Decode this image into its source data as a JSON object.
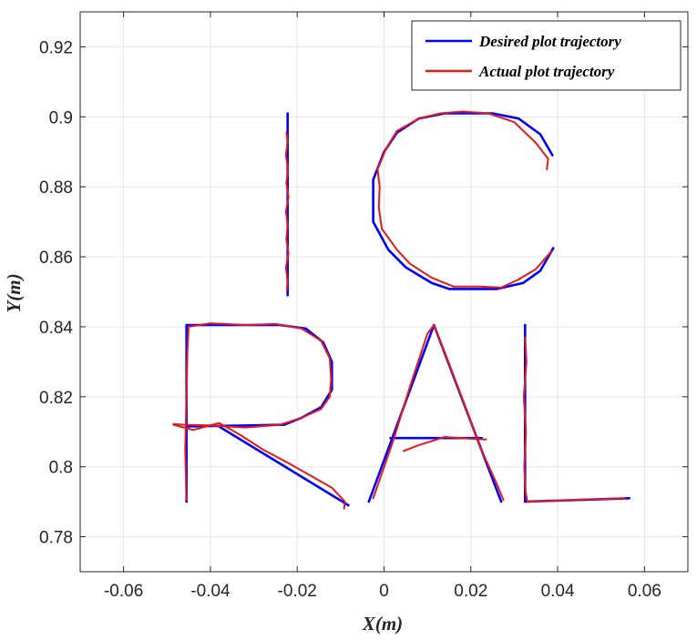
{
  "chart_data": {
    "type": "line",
    "title": "",
    "xlabel": "X(m)",
    "ylabel": "Y(m)",
    "xlim": [
      -0.07,
      0.07
    ],
    "ylim": [
      0.77,
      0.93
    ],
    "xticks": [
      -0.06,
      -0.04,
      -0.02,
      0,
      0.02,
      0.04,
      0.06
    ],
    "xtick_labels": [
      "-0.06",
      "-0.04",
      "-0.02",
      "0",
      "0.02",
      "0.04",
      "0.06"
    ],
    "yticks": [
      0.78,
      0.8,
      0.82,
      0.84,
      0.86,
      0.88,
      0.9,
      0.92
    ],
    "ytick_labels": [
      "0.78",
      "0.8",
      "0.82",
      "0.84",
      "0.86",
      "0.88",
      "0.9",
      "0.92"
    ],
    "grid": true,
    "legend_position": "top-right",
    "series": [
      {
        "name": "Desired plot trajectory",
        "color": "#0000ff",
        "segments": [
          [
            [
              -0.0222,
              0.901
            ],
            [
              -0.0222,
              0.849
            ]
          ],
          [
            [
              0.0388,
              0.889
            ],
            [
              0.036,
              0.895
            ],
            [
              0.031,
              0.8995
            ],
            [
              0.025,
              0.901
            ],
            [
              0.014,
              0.901
            ],
            [
              0.008,
              0.8995
            ],
            [
              0.003,
              0.8955
            ],
            [
              0.0,
              0.89
            ],
            [
              -0.0025,
              0.882
            ],
            [
              -0.0025,
              0.87
            ],
            [
              0.001,
              0.862
            ],
            [
              0.005,
              0.857
            ],
            [
              0.011,
              0.8525
            ],
            [
              0.015,
              0.8508
            ],
            [
              0.026,
              0.8508
            ],
            [
              0.032,
              0.8525
            ],
            [
              0.036,
              0.856
            ],
            [
              0.039,
              0.8625
            ]
          ],
          [
            [
              -0.0455,
              0.79
            ],
            [
              -0.0455,
              0.8405
            ],
            [
              -0.024,
              0.8405
            ],
            [
              -0.018,
              0.8395
            ],
            [
              -0.014,
              0.8355
            ],
            [
              -0.012,
              0.83
            ],
            [
              -0.012,
              0.822
            ],
            [
              -0.0145,
              0.817
            ],
            [
              -0.019,
              0.814
            ],
            [
              -0.023,
              0.812
            ],
            [
              -0.0455,
              0.8115
            ]
          ],
          [
            [
              -0.038,
              0.8115
            ],
            [
              -0.0082,
              0.789
            ]
          ],
          [
            [
              -0.0035,
              0.79
            ],
            [
              0.0115,
              0.8405
            ],
            [
              0.027,
              0.79
            ]
          ],
          [
            [
              0.0015,
              0.8082
            ],
            [
              0.0225,
              0.8082
            ]
          ],
          [
            [
              0.0325,
              0.8405
            ],
            [
              0.0325,
              0.79
            ],
            [
              0.0565,
              0.791
            ]
          ]
        ]
      },
      {
        "name": "Actual plot trajectory",
        "color": "#e31a1c",
        "segments": [
          [
            [
              -0.0225,
              0.8955
            ],
            [
              -0.0222,
              0.893
            ],
            [
              -0.0226,
              0.889
            ],
            [
              -0.0221,
              0.885
            ],
            [
              -0.0225,
              0.881
            ],
            [
              -0.022,
              0.877
            ],
            [
              -0.0226,
              0.873
            ],
            [
              -0.0222,
              0.869
            ],
            [
              -0.0225,
              0.865
            ],
            [
              -0.022,
              0.861
            ],
            [
              -0.0226,
              0.857
            ],
            [
              -0.0222,
              0.853
            ],
            [
              -0.0224,
              0.8505
            ]
          ],
          [
            [
              0.0375,
              0.885
            ],
            [
              0.0378,
              0.888
            ],
            [
              0.035,
              0.8925
            ],
            [
              0.03,
              0.8985
            ],
            [
              0.024,
              0.901
            ],
            [
              0.018,
              0.9015
            ],
            [
              0.013,
              0.901
            ],
            [
              0.008,
              0.8995
            ],
            [
              0.003,
              0.896
            ],
            [
              0.0005,
              0.891
            ],
            [
              -0.0015,
              0.885
            ],
            [
              -0.001,
              0.88
            ],
            [
              -0.0012,
              0.874
            ],
            [
              -0.0005,
              0.868
            ],
            [
              0.003,
              0.862
            ],
            [
              0.006,
              0.858
            ],
            [
              0.011,
              0.854
            ],
            [
              0.016,
              0.8515
            ],
            [
              0.022,
              0.8515
            ],
            [
              0.027,
              0.8512
            ],
            [
              0.031,
              0.8535
            ],
            [
              0.035,
              0.8565
            ],
            [
              0.0385,
              0.8615
            ]
          ],
          [
            [
              -0.0455,
              0.7905
            ],
            [
              -0.0458,
              0.805
            ],
            [
              -0.0455,
              0.82
            ],
            [
              -0.0453,
              0.833
            ],
            [
              -0.045,
              0.84
            ],
            [
              -0.04,
              0.841
            ],
            [
              -0.032,
              0.8405
            ],
            [
              -0.025,
              0.8408
            ],
            [
              -0.019,
              0.8395
            ],
            [
              -0.0145,
              0.836
            ],
            [
              -0.0125,
              0.831
            ],
            [
              -0.0122,
              0.825
            ],
            [
              -0.0125,
              0.82
            ],
            [
              -0.0145,
              0.8165
            ],
            [
              -0.019,
              0.814
            ],
            [
              -0.024,
              0.812
            ],
            [
              -0.032,
              0.8112
            ],
            [
              -0.04,
              0.8118
            ],
            [
              -0.046,
              0.812
            ],
            [
              -0.0485,
              0.8122
            ]
          ],
          [
            [
              -0.0485,
              0.812
            ],
            [
              -0.044,
              0.8105
            ],
            [
              -0.038,
              0.8125
            ],
            [
              -0.033,
              0.809
            ],
            [
              -0.028,
              0.805
            ],
            [
              -0.022,
              0.801
            ],
            [
              -0.017,
              0.7975
            ],
            [
              -0.012,
              0.794
            ],
            [
              -0.009,
              0.79
            ],
            [
              -0.0092,
              0.788
            ]
          ],
          [
            [
              -0.0025,
              0.791
            ],
            [
              0.002,
              0.807
            ],
            [
              0.006,
              0.823
            ],
            [
              0.01,
              0.838
            ],
            [
              0.0115,
              0.8405
            ],
            [
              0.0145,
              0.831
            ],
            [
              0.0185,
              0.818
            ],
            [
              0.022,
              0.806
            ],
            [
              0.026,
              0.795
            ],
            [
              0.0275,
              0.7905
            ]
          ],
          [
            [
              0.0045,
              0.8045
            ],
            [
              0.008,
              0.8062
            ],
            [
              0.014,
              0.8085
            ],
            [
              0.02,
              0.808
            ],
            [
              0.0235,
              0.8078
            ]
          ],
          [
            [
              0.0325,
              0.837
            ],
            [
              0.0328,
              0.83
            ],
            [
              0.0322,
              0.82
            ],
            [
              0.0327,
              0.81
            ],
            [
              0.0323,
              0.8
            ],
            [
              0.0326,
              0.793
            ],
            [
              0.033,
              0.79
            ],
            [
              0.038,
              0.7902
            ],
            [
              0.045,
              0.7906
            ],
            [
              0.051,
              0.7908
            ],
            [
              0.0555,
              0.791
            ]
          ]
        ]
      }
    ]
  }
}
